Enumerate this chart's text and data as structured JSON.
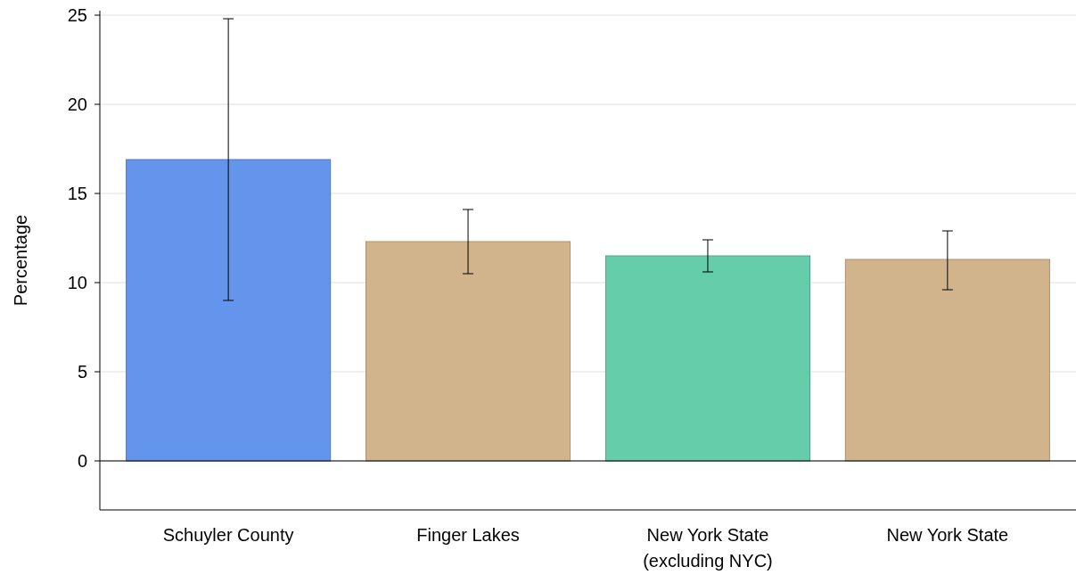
{
  "chart_data": {
    "type": "bar",
    "ylabel": "Percentage",
    "categories": [
      "Schuyler County",
      "Finger Lakes",
      "New York State\n(excluding NYC)",
      "New York State"
    ],
    "values": [
      16.9,
      12.3,
      11.5,
      11.3
    ],
    "colors": [
      "#6495ed",
      "#d2b48c",
      "#66cdaa",
      "#d2b48c"
    ],
    "errors": [
      [
        9.0,
        24.8
      ],
      [
        10.5,
        14.1
      ],
      [
        10.6,
        12.4
      ],
      [
        9.6,
        12.9
      ]
    ],
    "ylim": [
      -2.75,
      25.25
    ],
    "yticks": [
      0,
      5,
      10,
      15,
      20,
      25
    ],
    "grid": "y",
    "ref_lines": [
      {
        "axis": "y",
        "value": 0,
        "color": "#000000"
      }
    ]
  }
}
